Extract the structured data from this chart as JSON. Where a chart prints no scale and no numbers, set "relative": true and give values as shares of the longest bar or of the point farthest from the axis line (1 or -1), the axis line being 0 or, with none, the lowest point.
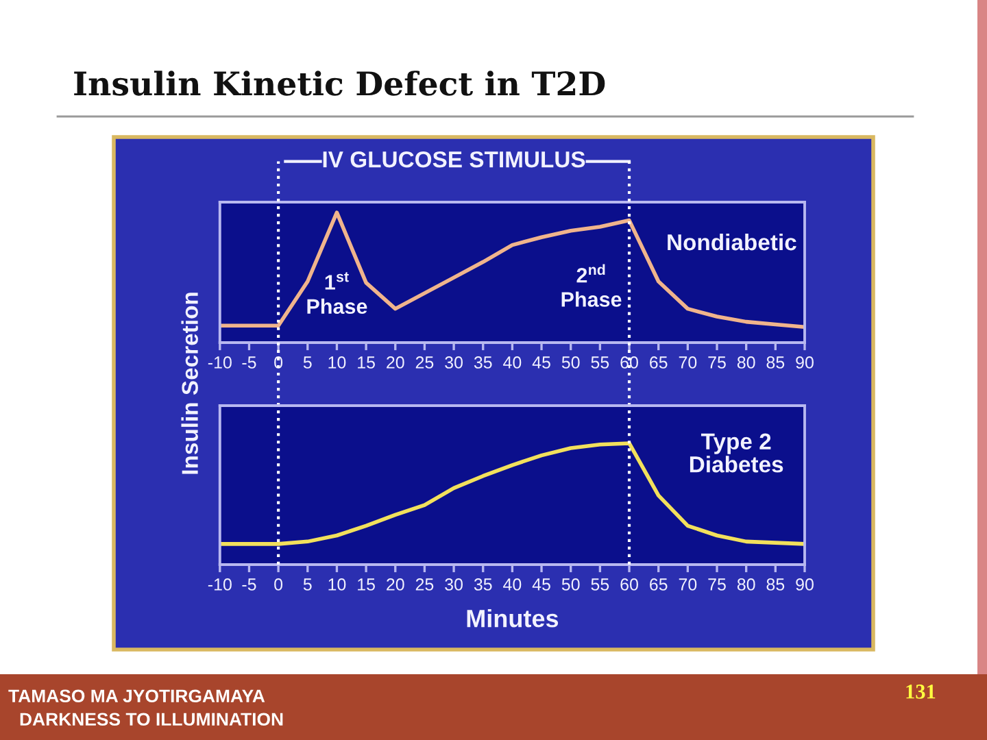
{
  "chart_data": [
    {
      "type": "line",
      "title": "Insulin Kinetic Defect in T2D",
      "ylabel": "Insulin Secretion",
      "relative": true,
      "x": [
        -10,
        -5,
        0,
        5,
        10,
        15,
        20,
        25,
        30,
        35,
        40,
        45,
        50,
        55,
        60,
        65,
        70,
        75,
        80,
        85,
        90
      ],
      "series": [
        {
          "name": "Nondiabetic",
          "color": "#f0b48c",
          "values": [
            0.13,
            0.13,
            0.13,
            0.47,
            1.0,
            0.46,
            0.26,
            0.38,
            0.5,
            0.62,
            0.75,
            0.81,
            0.86,
            0.89,
            0.94,
            0.47,
            0.26,
            0.2,
            0.16,
            0.14,
            0.12
          ]
        }
      ],
      "xlim": [
        -10,
        90
      ],
      "xticks": [
        -10,
        -5,
        0,
        5,
        10,
        15,
        20,
        25,
        30,
        35,
        40,
        45,
        50,
        55,
        60,
        65,
        70,
        75,
        80,
        85,
        90
      ],
      "tick_labels": "x",
      "ref_lines": [
        {
          "axis": "x",
          "value": 0,
          "color": "#ffffff",
          "line_style": "dotted"
        },
        {
          "axis": "x",
          "value": 60,
          "color": "#ffffff",
          "line_style": "dotted"
        }
      ],
      "annotations": [
        "IV GLUCOSE STIMULUS",
        "1$^{st}$\nPhase",
        "2$^{nd}$\nPhase"
      ]
    },
    {
      "type": "line",
      "xlabel": "Minutes",
      "relative": true,
      "x": [
        -10,
        -5,
        0,
        5,
        10,
        15,
        20,
        25,
        30,
        35,
        40,
        45,
        50,
        55,
        60,
        65,
        70,
        75,
        80,
        85,
        90
      ],
      "series": [
        {
          "name": "Type 2 Diabetes",
          "color": "#f2e05c",
          "values": [
            0.17,
            0.17,
            0.17,
            0.19,
            0.24,
            0.32,
            0.41,
            0.49,
            0.63,
            0.73,
            0.82,
            0.9,
            0.96,
            0.99,
            1.0,
            0.57,
            0.32,
            0.24,
            0.19,
            0.18,
            0.17
          ]
        }
      ],
      "xlim": [
        -10,
        90
      ],
      "xticks": [
        -10,
        -5,
        0,
        5,
        10,
        15,
        20,
        25,
        30,
        35,
        40,
        45,
        50,
        55,
        60,
        65,
        70,
        75,
        80,
        85,
        90
      ],
      "tick_labels": "x",
      "ref_lines": [
        {
          "axis": "x",
          "value": 0,
          "color": "#ffffff",
          "line_style": "dotted"
        },
        {
          "axis": "x",
          "value": 60,
          "color": "#ffffff",
          "line_style": "dotted"
        }
      ],
      "annotations": [
        "TAMASO MA JYOTIRGAMAYA",
        "DARKNESS TO ILLUMINATION",
        "131"
      ]
    }
  ]
}
